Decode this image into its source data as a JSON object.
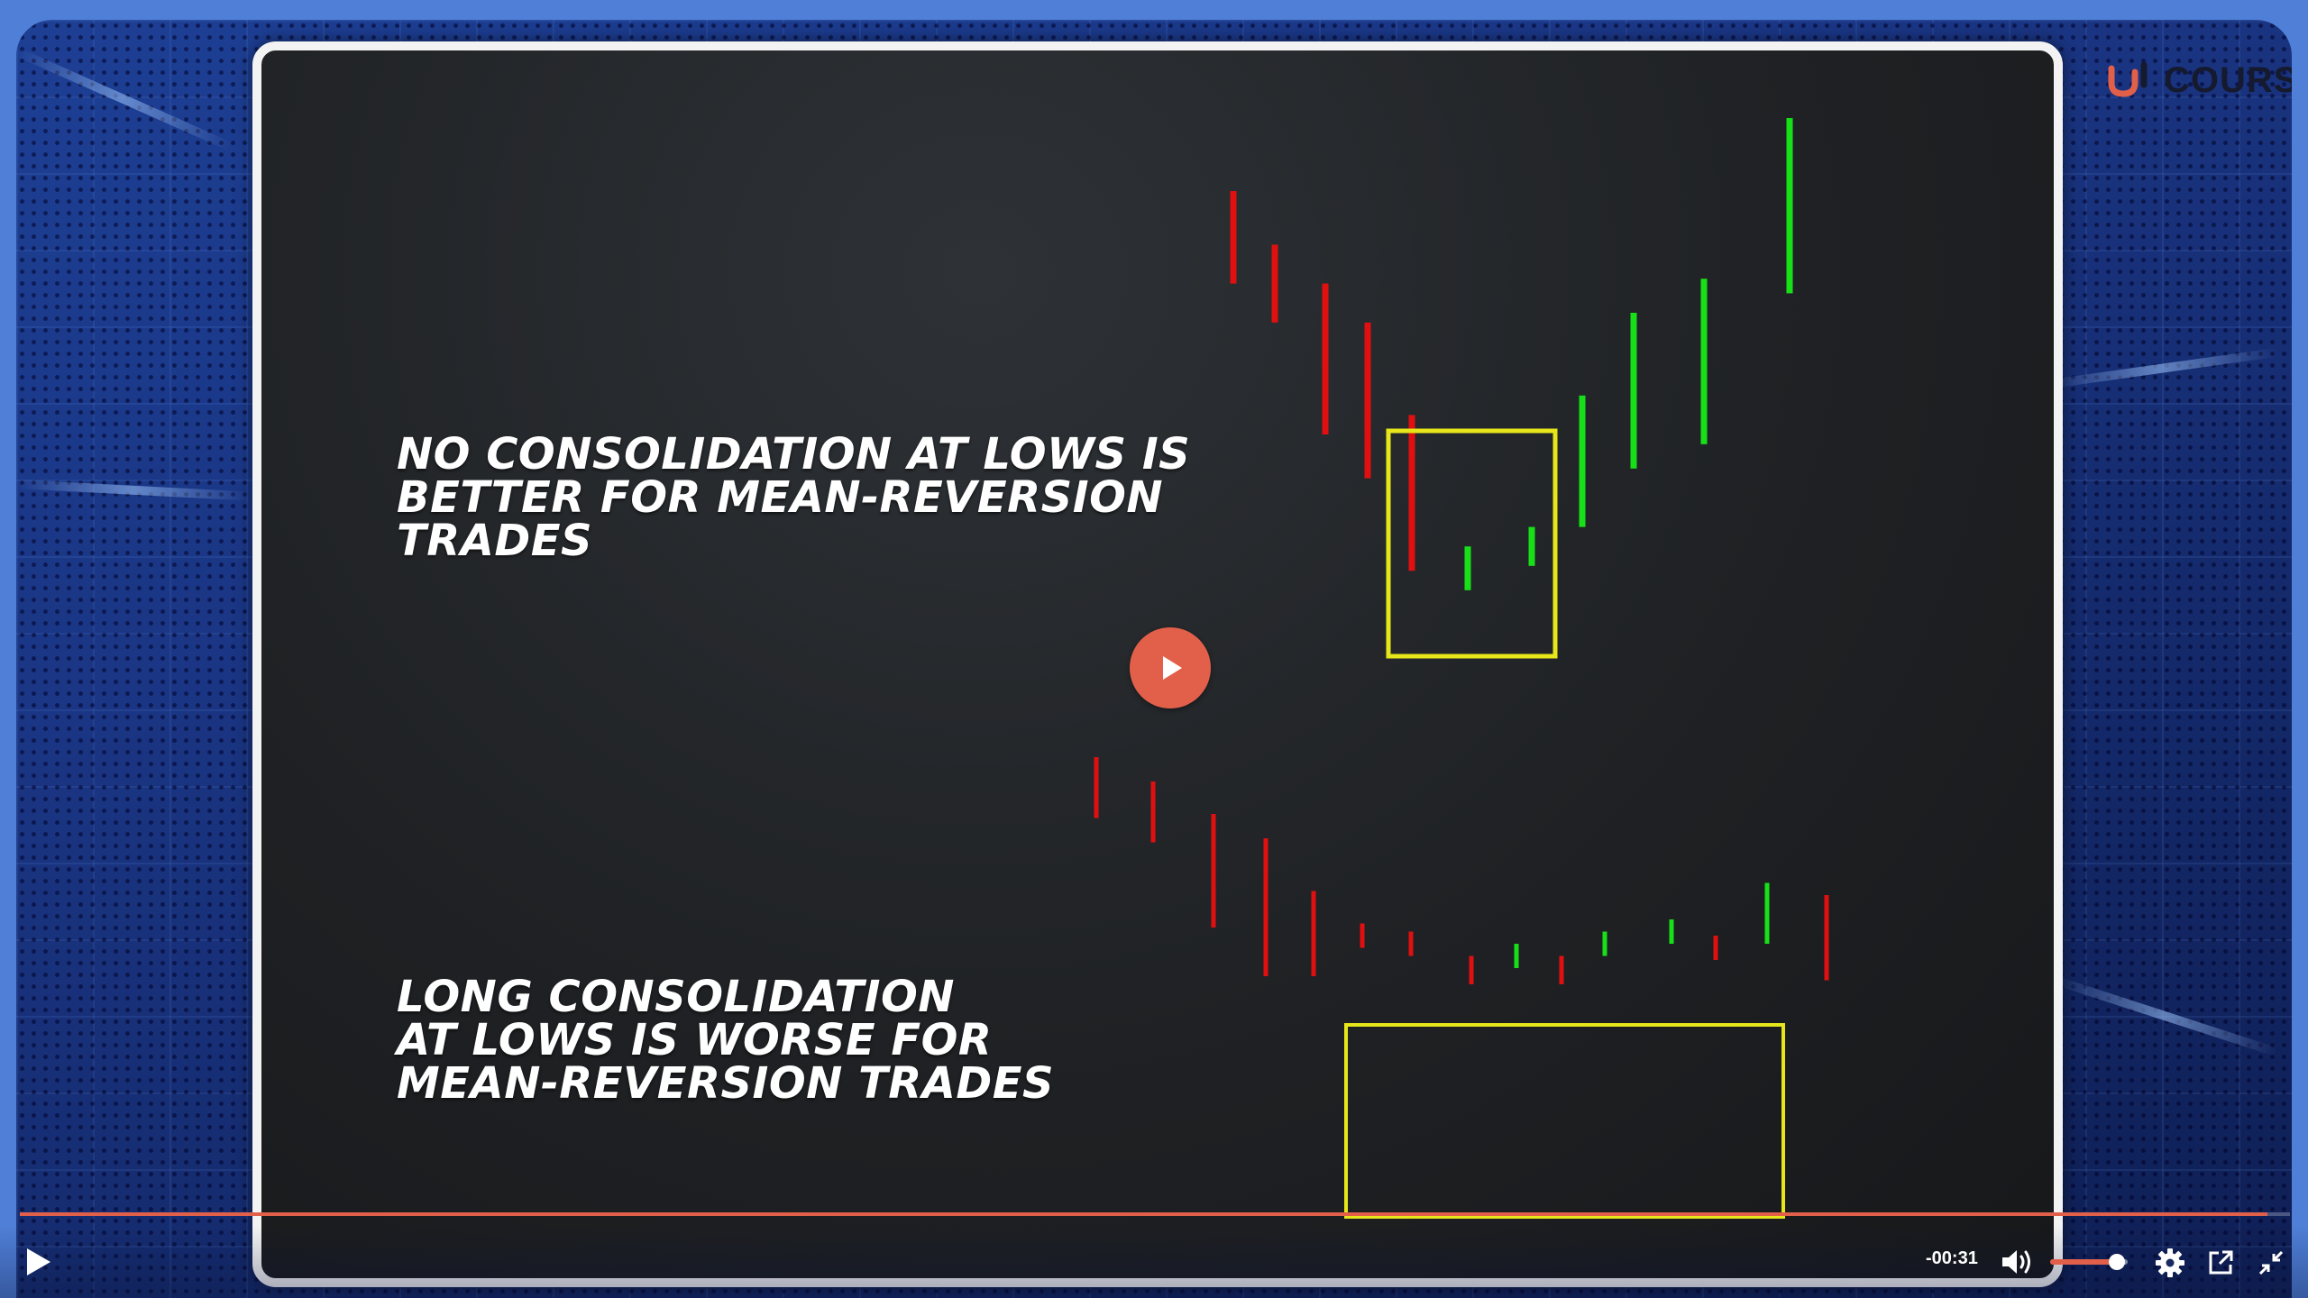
{
  "brand": {
    "text": "COURSE",
    "color": "#e2604a"
  },
  "slide": {
    "headline_top": [
      "NO CONSOLIDATION AT LOWS IS",
      "BETTER FOR MEAN-REVERSION",
      "TRADES"
    ],
    "headline_bottom": [
      "LONG CONSOLIDATION",
      "AT LOWS IS WORSE FOR",
      "MEAN-REVERSION TRADES"
    ]
  },
  "chart_data": [
    {
      "type": "ohlc-bars",
      "title": "NO CONSOLIDATION AT LOWS IS BETTER FOR MEAN-REVERSION TRADES",
      "colors": {
        "down": "#e01010",
        "up": "#18e018",
        "highlight_box": "#e6e61a"
      },
      "bars": [
        {
          "dir": "down",
          "high": 100,
          "low": 81
        },
        {
          "dir": "down",
          "high": 89,
          "low": 73
        },
        {
          "dir": "down",
          "high": 81,
          "low": 50
        },
        {
          "dir": "down",
          "high": 73,
          "low": 41
        },
        {
          "dir": "down",
          "high": 54,
          "low": 22
        },
        {
          "dir": "up",
          "high": 27,
          "low": 18
        },
        {
          "dir": "up",
          "high": 31,
          "low": 23
        },
        {
          "dir": "up",
          "high": 58,
          "low": 31
        },
        {
          "dir": "up",
          "high": 75,
          "low": 43
        },
        {
          "dir": "up",
          "high": 82,
          "low": 48
        },
        {
          "dir": "up",
          "high": 115,
          "low": 79
        }
      ],
      "highlight": {
        "from_bar": 4,
        "to_bar": 6
      }
    },
    {
      "type": "ohlc-bars",
      "title": "LONG CONSOLIDATION AT LOWS IS WORSE FOR MEAN-REVERSION TRADES",
      "colors": {
        "down": "#e01010",
        "up": "#18e018",
        "highlight_box": "#e6e61a"
      },
      "bars": [
        {
          "dir": "down",
          "high": 100,
          "low": 85
        },
        {
          "dir": "down",
          "high": 94,
          "low": 79
        },
        {
          "dir": "down",
          "high": 86,
          "low": 58
        },
        {
          "dir": "down",
          "high": 80,
          "low": 46
        },
        {
          "dir": "down",
          "high": 67,
          "low": 46
        },
        {
          "dir": "down",
          "high": 59,
          "low": 53
        },
        {
          "dir": "down",
          "high": 57,
          "low": 51
        },
        {
          "dir": "down",
          "high": 51,
          "low": 44
        },
        {
          "dir": "up",
          "high": 54,
          "low": 48
        },
        {
          "dir": "down",
          "high": 51,
          "low": 44
        },
        {
          "dir": "up",
          "high": 57,
          "low": 51
        },
        {
          "dir": "up",
          "high": 60,
          "low": 54
        },
        {
          "dir": "down",
          "high": 56,
          "low": 50
        },
        {
          "dir": "up",
          "high": 69,
          "low": 54
        },
        {
          "dir": "down",
          "high": 66,
          "low": 45
        }
      ],
      "highlight": {
        "from_bar": 5,
        "to_bar": 13
      }
    }
  ],
  "player": {
    "progress_fraction": 0.99,
    "remaining_time": "-00:31",
    "volume_fraction": 0.86,
    "accent": "#e2604a",
    "icons": [
      "play-icon",
      "volume-icon",
      "settings-gear-icon",
      "popout-icon",
      "exit-fullscreen-icon"
    ]
  }
}
